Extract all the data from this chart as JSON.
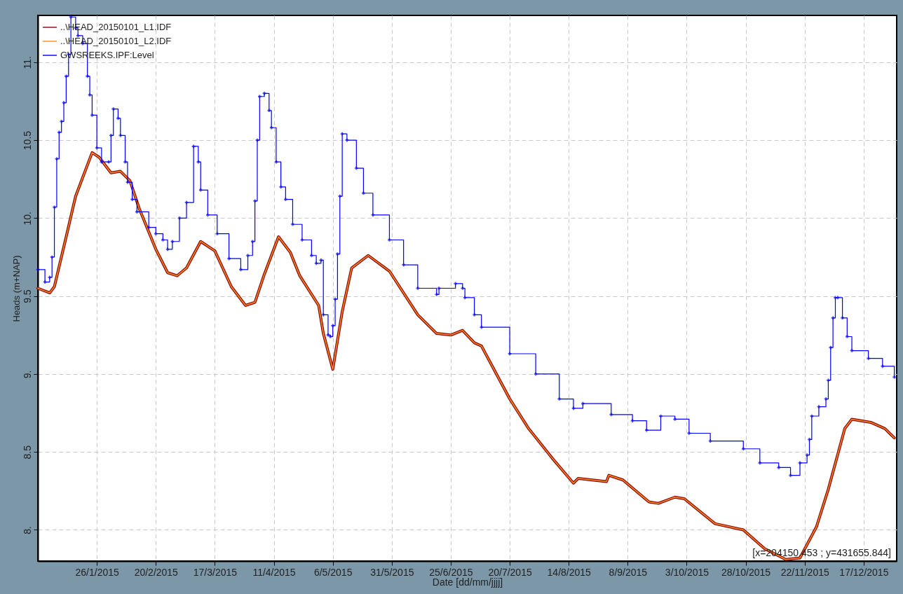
{
  "chart_data": {
    "type": "line",
    "xlabel": "Date [dd/mm/jjjj]",
    "ylabel": "Heads (m+NAP)",
    "xlim": [
      "2015-01-01",
      "2015-12-31"
    ],
    "xticks": [
      {
        "value": "2015-01-26",
        "label": "26/1/2015"
      },
      {
        "value": "2015-02-20",
        "label": "20/2/2015"
      },
      {
        "value": "2015-03-17",
        "label": "17/3/2015"
      },
      {
        "value": "2015-04-11",
        "label": "11/4/2015"
      },
      {
        "value": "2015-05-06",
        "label": "6/5/2015"
      },
      {
        "value": "2015-05-31",
        "label": "31/5/2015"
      },
      {
        "value": "2015-06-25",
        "label": "25/6/2015"
      },
      {
        "value": "2015-07-20",
        "label": "20/7/2015"
      },
      {
        "value": "2015-08-14",
        "label": "14/8/2015"
      },
      {
        "value": "2015-09-08",
        "label": "8/9/2015"
      },
      {
        "value": "2015-10-03",
        "label": "3/10/2015"
      },
      {
        "value": "2015-10-28",
        "label": "28/10/2015"
      },
      {
        "value": "2015-11-22",
        "label": "22/11/2015"
      },
      {
        "value": "2015-12-17",
        "label": "17/12/2015"
      }
    ],
    "ylim": [
      7.8,
      11.3
    ],
    "yticks": [
      {
        "value": 8,
        "label": "8."
      },
      {
        "value": 8.5,
        "label": "8.5"
      },
      {
        "value": 9,
        "label": "9."
      },
      {
        "value": 9.5,
        "label": "9.5"
      },
      {
        "value": 10,
        "label": "10."
      },
      {
        "value": 10.5,
        "label": "10.5"
      },
      {
        "value": 11,
        "label": "11."
      }
    ],
    "grid": true,
    "legend": "top left",
    "annotations": [
      "[x=204150.453 ; y=431655.844]"
    ],
    "series": [
      {
        "name": "..\\HEAD_20150101_L1.IDF",
        "color": "#8b0a0a",
        "x": [
          "2015-01-01",
          "2015-01-06",
          "2015-01-08",
          "2015-01-13",
          "2015-01-17",
          "2015-01-24",
          "2015-01-27",
          "2015-02-01",
          "2015-02-05",
          "2015-02-09",
          "2015-02-13",
          "2015-02-20",
          "2015-02-25",
          "2015-03-01",
          "2015-03-05",
          "2015-03-11",
          "2015-03-17",
          "2015-03-24",
          "2015-03-30",
          "2015-04-03",
          "2015-04-07",
          "2015-04-13",
          "2015-04-18",
          "2015-04-22",
          "2015-04-30",
          "2015-05-02",
          "2015-05-06",
          "2015-05-10",
          "2015-05-14",
          "2015-05-21",
          "2015-05-30",
          "2015-06-11",
          "2015-06-19",
          "2015-06-25",
          "2015-06-30",
          "2015-07-05",
          "2015-07-08",
          "2015-07-20",
          "2015-07-28",
          "2015-08-07",
          "2015-08-16",
          "2015-08-18",
          "2015-08-30",
          "2015-08-31",
          "2015-09-06",
          "2015-09-17",
          "2015-09-21",
          "2015-09-28",
          "2015-10-02",
          "2015-10-15",
          "2015-10-27",
          "2015-11-05",
          "2015-11-14",
          "2015-11-20",
          "2015-11-27",
          "2015-12-02",
          "2015-12-09",
          "2015-12-12",
          "2015-12-20",
          "2015-12-26",
          "2015-12-30"
        ],
        "values": [
          9.55,
          9.52,
          9.56,
          9.88,
          10.14,
          10.42,
          10.39,
          10.29,
          10.3,
          10.24,
          10.06,
          9.8,
          9.65,
          9.63,
          9.68,
          9.85,
          9.79,
          9.56,
          9.44,
          9.46,
          9.64,
          9.88,
          9.78,
          9.63,
          9.44,
          9.26,
          9.03,
          9.4,
          9.68,
          9.76,
          9.66,
          9.38,
          9.26,
          9.25,
          9.28,
          9.2,
          9.18,
          8.84,
          8.65,
          8.46,
          8.3,
          8.33,
          8.31,
          8.35,
          8.32,
          8.18,
          8.17,
          8.21,
          8.2,
          8.04,
          8.0,
          7.88,
          7.81,
          7.82,
          8.02,
          8.26,
          8.65,
          8.71,
          8.69,
          8.65,
          8.59
        ]
      },
      {
        "name": "..\\HEAD_20150101_L2.IDF",
        "color": "#ff8c1a",
        "x": [
          "2015-01-01",
          "2015-01-06",
          "2015-01-08",
          "2015-01-13",
          "2015-01-17",
          "2015-01-24",
          "2015-01-27",
          "2015-02-01",
          "2015-02-05",
          "2015-02-09",
          "2015-02-13",
          "2015-02-20",
          "2015-02-25",
          "2015-03-01",
          "2015-03-05",
          "2015-03-11",
          "2015-03-17",
          "2015-03-24",
          "2015-03-30",
          "2015-04-03",
          "2015-04-07",
          "2015-04-13",
          "2015-04-18",
          "2015-04-22",
          "2015-04-30",
          "2015-05-02",
          "2015-05-06",
          "2015-05-10",
          "2015-05-14",
          "2015-05-21",
          "2015-05-30",
          "2015-06-11",
          "2015-06-19",
          "2015-06-25",
          "2015-06-30",
          "2015-07-05",
          "2015-07-08",
          "2015-07-20",
          "2015-07-28",
          "2015-08-07",
          "2015-08-16",
          "2015-08-18",
          "2015-08-30",
          "2015-08-31",
          "2015-09-06",
          "2015-09-17",
          "2015-09-21",
          "2015-09-28",
          "2015-10-02",
          "2015-10-15",
          "2015-10-27",
          "2015-11-05",
          "2015-11-14",
          "2015-11-20",
          "2015-11-27",
          "2015-12-02",
          "2015-12-09",
          "2015-12-12",
          "2015-12-20",
          "2015-12-26",
          "2015-12-30"
        ],
        "values": [
          9.55,
          9.52,
          9.56,
          9.88,
          10.14,
          10.42,
          10.39,
          10.29,
          10.3,
          10.24,
          10.06,
          9.8,
          9.65,
          9.63,
          9.68,
          9.85,
          9.79,
          9.56,
          9.44,
          9.46,
          9.64,
          9.88,
          9.78,
          9.63,
          9.44,
          9.26,
          9.03,
          9.4,
          9.68,
          9.76,
          9.66,
          9.38,
          9.26,
          9.25,
          9.28,
          9.2,
          9.18,
          8.84,
          8.65,
          8.46,
          8.3,
          8.33,
          8.31,
          8.35,
          8.32,
          8.18,
          8.17,
          8.21,
          8.2,
          8.04,
          8.0,
          7.88,
          7.81,
          7.82,
          8.02,
          8.26,
          8.65,
          8.71,
          8.69,
          8.65,
          8.59
        ]
      },
      {
        "name": "GWSREEKS.IPF:Level",
        "color": "#0000ff",
        "type": "step",
        "marker": "cross",
        "x": [
          "2015-01-01",
          "2015-01-04",
          "2015-01-06",
          "2015-01-07",
          "2015-01-08",
          "2015-01-09",
          "2015-01-10",
          "2015-01-11",
          "2015-01-12",
          "2015-01-13",
          "2015-01-14",
          "2015-01-15",
          "2015-01-17",
          "2015-01-18",
          "2015-01-20",
          "2015-01-22",
          "2015-01-23",
          "2015-01-24",
          "2015-01-26",
          "2015-01-28",
          "2015-01-31",
          "2015-02-01",
          "2015-02-02",
          "2015-02-04",
          "2015-02-05",
          "2015-02-07",
          "2015-02-08",
          "2015-02-10",
          "2015-02-12",
          "2015-02-17",
          "2015-02-20",
          "2015-02-23",
          "2015-02-25",
          "2015-02-27",
          "2015-03-02",
          "2015-03-05",
          "2015-03-08",
          "2015-03-10",
          "2015-03-11",
          "2015-03-14",
          "2015-03-18",
          "2015-03-23",
          "2015-03-28",
          "2015-03-31",
          "2015-04-02",
          "2015-04-03",
          "2015-04-04",
          "2015-04-05",
          "2015-04-07",
          "2015-04-09",
          "2015-04-10",
          "2015-04-12",
          "2015-04-14",
          "2015-04-16",
          "2015-04-19",
          "2015-04-23",
          "2015-04-27",
          "2015-04-29",
          "2015-05-01",
          "2015-05-02",
          "2015-05-04",
          "2015-05-05",
          "2015-05-06",
          "2015-05-07",
          "2015-05-08",
          "2015-05-09",
          "2015-05-10",
          "2015-05-12",
          "2015-05-16",
          "2015-05-19",
          "2015-05-23",
          "2015-05-30",
          "2015-06-05",
          "2015-06-11",
          "2015-06-19",
          "2015-06-20",
          "2015-06-27",
          "2015-06-30",
          "2015-07-01",
          "2015-07-05",
          "2015-07-08",
          "2015-07-20",
          "2015-07-31",
          "2015-08-10",
          "2015-08-16",
          "2015-08-20",
          "2015-09-01",
          "2015-09-10",
          "2015-09-16",
          "2015-09-22",
          "2015-09-28",
          "2015-10-04",
          "2015-10-13",
          "2015-10-27",
          "2015-11-03",
          "2015-11-11",
          "2015-11-16",
          "2015-11-20",
          "2015-11-23",
          "2015-11-24",
          "2015-11-25",
          "2015-11-28",
          "2015-12-01",
          "2015-12-02",
          "2015-12-03",
          "2015-12-04",
          "2015-12-05",
          "2015-12-06",
          "2015-12-08",
          "2015-12-10",
          "2015-12-12",
          "2015-12-19",
          "2015-12-25",
          "2015-12-30"
        ],
        "values": [
          9.67,
          9.59,
          9.62,
          9.75,
          10.07,
          10.38,
          10.55,
          10.62,
          10.74,
          10.91,
          11.05,
          11.29,
          11.22,
          11.17,
          11.12,
          10.91,
          10.79,
          10.66,
          10.45,
          10.36,
          10.36,
          10.53,
          10.7,
          10.64,
          10.53,
          10.36,
          10.23,
          10.12,
          10.04,
          9.94,
          9.9,
          9.86,
          9.8,
          9.85,
          10.0,
          10.1,
          10.46,
          10.36,
          10.18,
          10.02,
          9.9,
          9.74,
          9.67,
          9.76,
          9.85,
          10.11,
          10.5,
          10.78,
          10.8,
          10.69,
          10.58,
          10.36,
          10.2,
          10.12,
          9.96,
          9.86,
          9.76,
          9.71,
          9.73,
          9.38,
          9.25,
          9.24,
          9.31,
          9.48,
          9.77,
          10.14,
          10.54,
          10.5,
          10.32,
          10.16,
          10.02,
          9.86,
          9.7,
          9.55,
          9.51,
          9.55,
          9.58,
          9.55,
          9.49,
          9.38,
          9.3,
          9.13,
          9.0,
          8.84,
          8.78,
          8.81,
          8.74,
          8.7,
          8.64,
          8.73,
          8.71,
          8.62,
          8.57,
          8.52,
          8.43,
          8.4,
          8.35,
          8.43,
          8.48,
          8.58,
          8.73,
          8.79,
          8.84,
          8.96,
          9.17,
          9.36,
          9.49,
          9.49,
          9.36,
          9.24,
          9.15,
          9.1,
          9.05,
          8.98
        ]
      }
    ]
  }
}
